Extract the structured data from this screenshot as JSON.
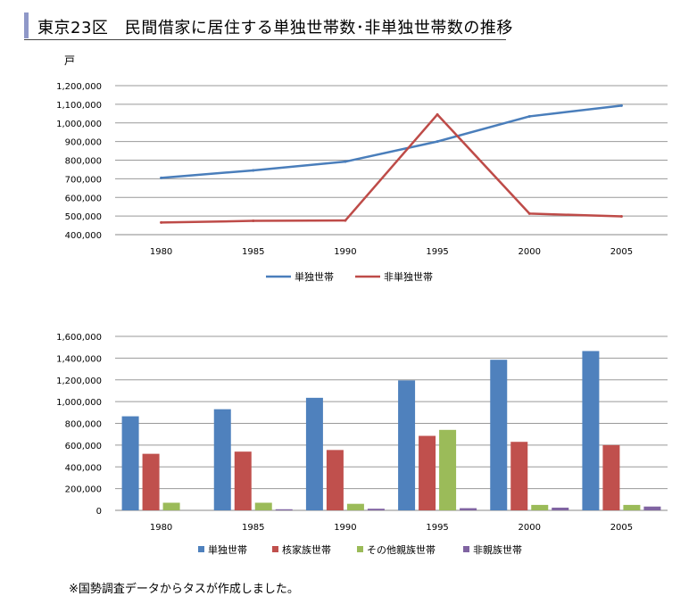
{
  "page": {
    "title": "東京23区　民間借家に居住する単独世帯数･非単独世帯数の推移",
    "footnote": "※国勢調査データからタスが作成しました。"
  },
  "chart_data": [
    {
      "type": "line",
      "unit_label": "戸",
      "x": [
        "1980",
        "1985",
        "1990",
        "1995",
        "2000",
        "2005"
      ],
      "series": [
        {
          "name": "単独世帯",
          "color": "#4a7ebb",
          "values": [
            705000,
            745000,
            792000,
            900000,
            1035000,
            1093000
          ]
        },
        {
          "name": "非単独世帯",
          "color": "#be4b48",
          "values": [
            465000,
            474000,
            476000,
            1045000,
            513000,
            498000
          ]
        }
      ],
      "ylim": [
        400000,
        1200000
      ],
      "yticks": [
        "400,000",
        "500,000",
        "600,000",
        "700,000",
        "800,000",
        "900,000",
        "1,000,000",
        "1,100,000",
        "1,200,000"
      ],
      "grid": true,
      "legend": "bottom"
    },
    {
      "type": "bar",
      "categories": [
        "1980",
        "1985",
        "1990",
        "1995",
        "2000",
        "2005"
      ],
      "series": [
        {
          "name": "単独世帯",
          "color": "#4f81bd",
          "values": [
            865000,
            930000,
            1035000,
            1195000,
            1385000,
            1465000
          ]
        },
        {
          "name": "核家族世帯",
          "color": "#c0504d",
          "values": [
            520000,
            540000,
            555000,
            685000,
            630000,
            600000
          ]
        },
        {
          "name": "その他親族世帯",
          "color": "#9bbb59",
          "values": [
            70000,
            70000,
            60000,
            740000,
            50000,
            50000
          ]
        },
        {
          "name": "非親族世帯",
          "color": "#8064a2",
          "values": [
            0,
            10000,
            15000,
            20000,
            25000,
            35000
          ]
        }
      ],
      "ylim": [
        0,
        1600000
      ],
      "yticks": [
        "0",
        "200,000",
        "400,000",
        "600,000",
        "800,000",
        "1,000,000",
        "1,200,000",
        "1,400,000",
        "1,600,000"
      ],
      "grid": true,
      "legend": "bottom"
    }
  ]
}
